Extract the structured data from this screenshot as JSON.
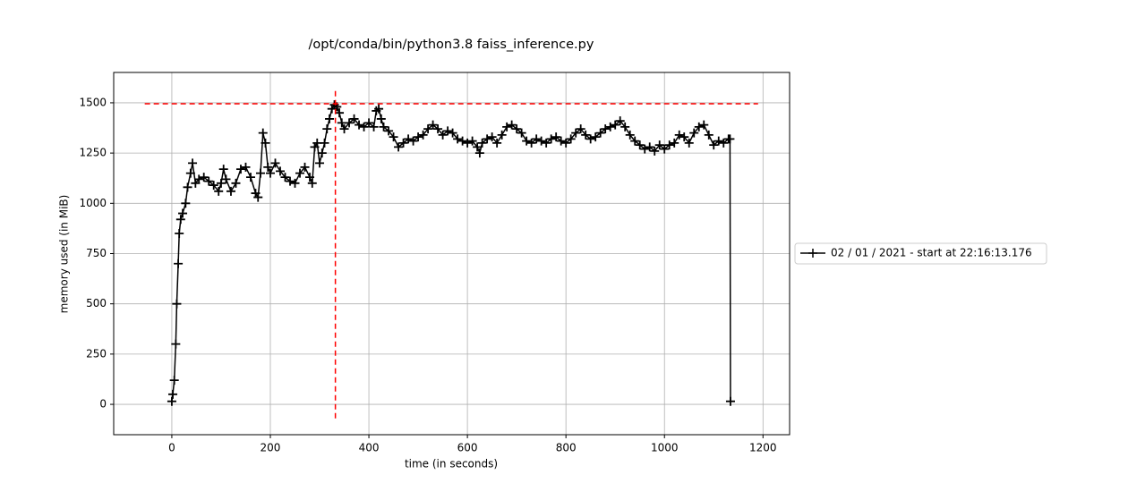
{
  "chart_data": {
    "type": "line",
    "title": "/opt/conda/bin/python3.8 faiss_inference.py",
    "x_label": "time (in seconds)",
    "y_label": "memory used (in MiB)",
    "x": [
      0,
      2,
      5,
      8,
      10,
      13,
      15,
      18,
      22,
      28,
      32,
      38,
      42,
      48,
      55,
      65,
      75,
      85,
      95,
      100,
      105,
      110,
      120,
      130,
      140,
      150,
      160,
      170,
      175,
      180,
      185,
      190,
      195,
      200,
      210,
      220,
      230,
      240,
      250,
      260,
      270,
      280,
      285,
      290,
      295,
      300,
      305,
      310,
      315,
      320,
      325,
      330,
      335,
      340,
      345,
      350,
      360,
      370,
      380,
      390,
      400,
      410,
      415,
      420,
      425,
      430,
      440,
      450,
      460,
      470,
      480,
      490,
      500,
      510,
      520,
      530,
      540,
      550,
      560,
      570,
      580,
      590,
      600,
      610,
      620,
      625,
      630,
      640,
      650,
      660,
      670,
      680,
      690,
      700,
      710,
      720,
      730,
      740,
      750,
      760,
      770,
      780,
      790,
      800,
      810,
      820,
      830,
      840,
      850,
      860,
      870,
      880,
      890,
      900,
      910,
      920,
      930,
      940,
      950,
      960,
      970,
      980,
      990,
      1000,
      1010,
      1020,
      1030,
      1040,
      1050,
      1060,
      1070,
      1080,
      1090,
      1100,
      1110,
      1120,
      1130,
      1133,
      1134
    ],
    "series": [
      {
        "name": "02 / 01 / 2021 - start at 22:16:13.176",
        "color": "#000000",
        "values": [
          15,
          50,
          120,
          300,
          500,
          700,
          850,
          920,
          950,
          1000,
          1080,
          1150,
          1200,
          1100,
          1120,
          1130,
          1110,
          1090,
          1060,
          1100,
          1170,
          1120,
          1060,
          1100,
          1170,
          1180,
          1130,
          1050,
          1030,
          1150,
          1350,
          1300,
          1180,
          1150,
          1200,
          1160,
          1130,
          1110,
          1100,
          1150,
          1180,
          1130,
          1100,
          1280,
          1300,
          1200,
          1250,
          1300,
          1370,
          1420,
          1470,
          1490,
          1480,
          1450,
          1400,
          1370,
          1400,
          1420,
          1390,
          1380,
          1400,
          1380,
          1460,
          1470,
          1420,
          1380,
          1360,
          1330,
          1280,
          1300,
          1320,
          1310,
          1330,
          1340,
          1370,
          1390,
          1370,
          1340,
          1360,
          1350,
          1320,
          1310,
          1300,
          1310,
          1280,
          1250,
          1300,
          1320,
          1330,
          1300,
          1340,
          1380,
          1390,
          1370,
          1350,
          1310,
          1300,
          1320,
          1310,
          1300,
          1320,
          1330,
          1310,
          1300,
          1320,
          1350,
          1370,
          1340,
          1320,
          1330,
          1350,
          1370,
          1380,
          1390,
          1410,
          1380,
          1340,
          1310,
          1290,
          1270,
          1280,
          1260,
          1290,
          1270,
          1290,
          1300,
          1340,
          1330,
          1300,
          1350,
          1380,
          1390,
          1340,
          1290,
          1310,
          1300,
          1320,
          1320,
          15
        ]
      }
    ],
    "max_hline": {
      "y": 1495,
      "xmin": -55,
      "xmax": 1190,
      "color": "#ff0000"
    },
    "max_vline": {
      "x": 332,
      "ymin": -70,
      "ymax": 1570,
      "color": "#ff0000"
    },
    "xlim": [
      -118,
      1254
    ],
    "ylim": [
      -151,
      1651
    ],
    "xticks": [
      0,
      200,
      400,
      600,
      800,
      1000,
      1200
    ],
    "yticks": [
      0,
      250,
      500,
      750,
      1000,
      1250,
      1500
    ],
    "grid": true,
    "legend": "right"
  }
}
